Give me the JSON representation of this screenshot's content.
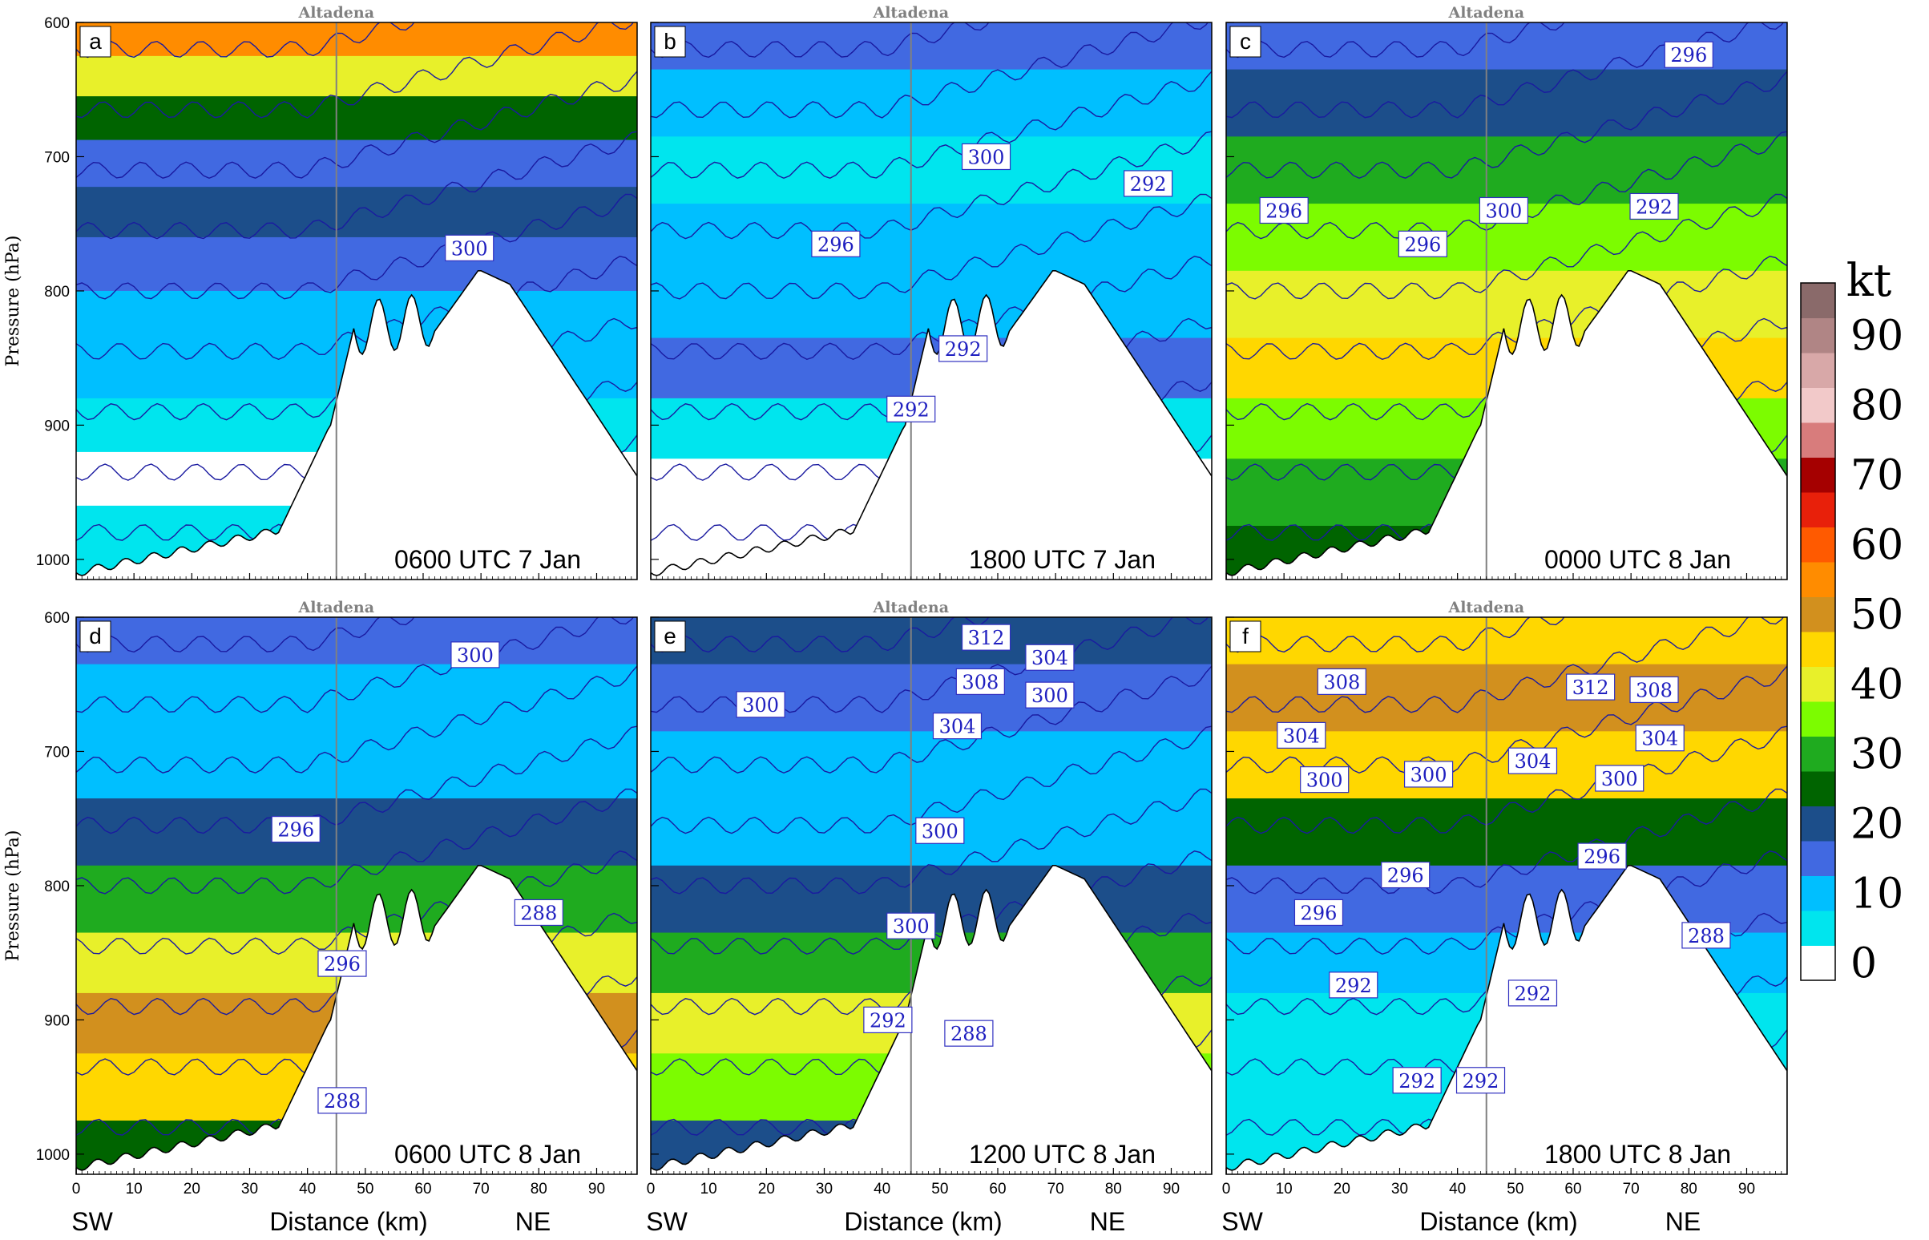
{
  "chart_data": {
    "type": "heatmap",
    "description_units": {
      "colorbar_unit": "kt",
      "colorbar_labels": [
        "0",
        "10",
        "20",
        "30",
        "40",
        "50",
        "60",
        "70",
        "80",
        "90"
      ],
      "colorbar_bins": [
        0,
        5,
        10,
        15,
        20,
        25,
        30,
        35,
        40,
        45,
        50,
        55,
        60,
        65,
        70,
        75,
        80,
        85,
        90,
        95,
        100
      ],
      "colorbar_colors": [
        "#ffffff",
        "#00e5ee",
        "#00bfff",
        "#4169e1",
        "#1c4e8a",
        "#006400",
        "#1fab1f",
        "#7cfc00",
        "#e8f02a",
        "#ffd700",
        "#d2901e",
        "#ff8c00",
        "#ff5a00",
        "#e8200a",
        "#a50000",
        "#d87c7c",
        "#f2c9c9",
        "#d8a8a8",
        "#b08585",
        "#8a6a6a"
      ]
    },
    "xlabel": "Distance (km)",
    "ylabel": "Pressure (hPa)",
    "xlim": [
      0,
      97
    ],
    "ylim": [
      1015,
      600
    ],
    "xticks": [
      "0",
      "10",
      "20",
      "30",
      "40",
      "50",
      "60",
      "70",
      "80",
      "90"
    ],
    "yticks": [
      "600",
      "700",
      "800",
      "900",
      "1000"
    ],
    "x_end_left": "SW",
    "x_end_right": "NE",
    "location_label": "Altadena",
    "location_x_km": 45,
    "panels": [
      {
        "letter": "a",
        "time": "0600 UTC 7 Jan",
        "contour_labels": [
          {
            "text": "300",
            "x_km": 68,
            "p": 768
          }
        ],
        "speed_bands": [
          {
            "p": 610,
            "speed": 55
          },
          {
            "p": 640,
            "speed": 42
          },
          {
            "p": 670,
            "speed": 28
          },
          {
            "p": 705,
            "speed": 18
          },
          {
            "p": 740,
            "speed": 20
          },
          {
            "p": 780,
            "speed": 15
          },
          {
            "p": 820,
            "speed": 14
          },
          {
            "p": 860,
            "speed": 12
          },
          {
            "p": 900,
            "speed": 8
          },
          {
            "p": 940,
            "speed": 3
          },
          {
            "p": 980,
            "speed": 6
          },
          {
            "p": 1010,
            "speed": 8
          }
        ]
      },
      {
        "letter": "b",
        "time": "1800 UTC 7 Jan",
        "contour_labels": [
          {
            "text": "300",
            "x_km": 58,
            "p": 700
          },
          {
            "text": "292",
            "x_km": 86,
            "p": 720
          },
          {
            "text": "296",
            "x_km": 32,
            "p": 765
          },
          {
            "text": "292",
            "x_km": 54,
            "p": 843
          },
          {
            "text": "292",
            "x_km": 45,
            "p": 888
          }
        ],
        "speed_bands": [
          {
            "p": 610,
            "speed": 15
          },
          {
            "p": 660,
            "speed": 12
          },
          {
            "p": 710,
            "speed": 9
          },
          {
            "p": 760,
            "speed": 11
          },
          {
            "p": 810,
            "speed": 12
          },
          {
            "p": 860,
            "speed": 15
          },
          {
            "p": 900,
            "speed": 8
          },
          {
            "p": 950,
            "speed": 2
          },
          {
            "p": 1000,
            "speed": 4
          }
        ]
      },
      {
        "letter": "c",
        "time": "0000 UTC 8 Jan",
        "contour_labels": [
          {
            "text": "296",
            "x_km": 80,
            "p": 624
          },
          {
            "text": "296",
            "x_km": 10,
            "p": 740
          },
          {
            "text": "300",
            "x_km": 48,
            "p": 740
          },
          {
            "text": "292",
            "x_km": 74,
            "p": 737
          },
          {
            "text": "296",
            "x_km": 34,
            "p": 765
          }
        ],
        "speed_bands": [
          {
            "p": 610,
            "speed": 18
          },
          {
            "p": 660,
            "speed": 22
          },
          {
            "p": 710,
            "speed": 30
          },
          {
            "p": 760,
            "speed": 38
          },
          {
            "p": 810,
            "speed": 42
          },
          {
            "p": 860,
            "speed": 45
          },
          {
            "p": 900,
            "speed": 38
          },
          {
            "p": 950,
            "speed": 30
          },
          {
            "p": 1000,
            "speed": 25
          }
        ]
      },
      {
        "letter": "d",
        "time": "0600 UTC 8 Jan",
        "contour_labels": [
          {
            "text": "300",
            "x_km": 69,
            "p": 628
          },
          {
            "text": "296",
            "x_km": 38,
            "p": 758
          },
          {
            "text": "288",
            "x_km": 80,
            "p": 820
          },
          {
            "text": "296",
            "x_km": 46,
            "p": 858
          },
          {
            "text": "288",
            "x_km": 46,
            "p": 960
          }
        ],
        "speed_bands": [
          {
            "p": 610,
            "speed": 16
          },
          {
            "p": 660,
            "speed": 12
          },
          {
            "p": 710,
            "speed": 10
          },
          {
            "p": 760,
            "speed": 20
          },
          {
            "p": 810,
            "speed": 30
          },
          {
            "p": 860,
            "speed": 42
          },
          {
            "p": 900,
            "speed": 50
          },
          {
            "p": 950,
            "speed": 45
          },
          {
            "p": 1000,
            "speed": 25
          }
        ]
      },
      {
        "letter": "e",
        "time": "1200 UTC 8 Jan",
        "contour_labels": [
          {
            "text": "312",
            "x_km": 58,
            "p": 615
          },
          {
            "text": "304",
            "x_km": 69,
            "p": 630
          },
          {
            "text": "308",
            "x_km": 57,
            "p": 648
          },
          {
            "text": "300",
            "x_km": 69,
            "p": 658
          },
          {
            "text": "300",
            "x_km": 19,
            "p": 665
          },
          {
            "text": "304",
            "x_km": 53,
            "p": 681
          },
          {
            "text": "300",
            "x_km": 50,
            "p": 759
          },
          {
            "text": "300",
            "x_km": 45,
            "p": 830
          },
          {
            "text": "292",
            "x_km": 41,
            "p": 900
          },
          {
            "text": "288",
            "x_km": 55,
            "p": 910
          }
        ],
        "speed_bands": [
          {
            "p": 610,
            "speed": 22
          },
          {
            "p": 660,
            "speed": 18
          },
          {
            "p": 710,
            "speed": 12
          },
          {
            "p": 760,
            "speed": 12
          },
          {
            "p": 810,
            "speed": 20
          },
          {
            "p": 860,
            "speed": 30
          },
          {
            "p": 900,
            "speed": 40
          },
          {
            "p": 950,
            "speed": 35
          },
          {
            "p": 1000,
            "speed": 22
          }
        ]
      },
      {
        "letter": "f",
        "time": "1800 UTC 8 Jan",
        "contour_labels": [
          {
            "text": "308",
            "x_km": 20,
            "p": 648
          },
          {
            "text": "312",
            "x_km": 63,
            "p": 652
          },
          {
            "text": "308",
            "x_km": 74,
            "p": 654
          },
          {
            "text": "304",
            "x_km": 13,
            "p": 688
          },
          {
            "text": "304",
            "x_km": 75,
            "p": 690
          },
          {
            "text": "304",
            "x_km": 53,
            "p": 707
          },
          {
            "text": "300",
            "x_km": 17,
            "p": 721
          },
          {
            "text": "300",
            "x_km": 35,
            "p": 717
          },
          {
            "text": "300",
            "x_km": 68,
            "p": 720
          },
          {
            "text": "296",
            "x_km": 65,
            "p": 778
          },
          {
            "text": "296",
            "x_km": 31,
            "p": 792
          },
          {
            "text": "296",
            "x_km": 16,
            "p": 820
          },
          {
            "text": "288",
            "x_km": 83,
            "p": 837
          },
          {
            "text": "292",
            "x_km": 22,
            "p": 874
          },
          {
            "text": "292",
            "x_km": 53,
            "p": 880
          },
          {
            "text": "292",
            "x_km": 33,
            "p": 945
          },
          {
            "text": "292",
            "x_km": 44,
            "p": 945
          }
        ],
        "speed_bands": [
          {
            "p": 610,
            "speed": 48
          },
          {
            "p": 660,
            "speed": 52
          },
          {
            "p": 710,
            "speed": 45
          },
          {
            "p": 760,
            "speed": 28
          },
          {
            "p": 810,
            "speed": 15
          },
          {
            "p": 860,
            "speed": 12
          },
          {
            "p": 900,
            "speed": 9
          },
          {
            "p": 950,
            "speed": 6
          },
          {
            "p": 1000,
            "speed": 8
          }
        ]
      }
    ]
  }
}
